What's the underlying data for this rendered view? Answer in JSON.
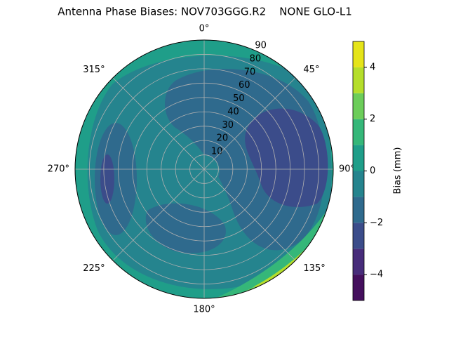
{
  "chart_data": {
    "type": "polar_contour",
    "title": "Antenna Phase Biases: NOV703GGG.R2    NONE GLO-L1",
    "theta_direction": "clockwise",
    "theta_zero": "N",
    "thetaticks": [
      {
        "value": 0,
        "label": "0°"
      },
      {
        "value": 45,
        "label": "45°"
      },
      {
        "value": 90,
        "label": "90°"
      },
      {
        "value": 135,
        "label": "135°"
      },
      {
        "value": 180,
        "label": "180°"
      },
      {
        "value": 225,
        "label": "225°"
      },
      {
        "value": 270,
        "label": "270°"
      },
      {
        "value": 315,
        "label": "315°"
      }
    ],
    "rlim": [
      0,
      90
    ],
    "rticks": [
      10,
      20,
      30,
      40,
      50,
      60,
      70,
      80,
      90
    ],
    "grid": true,
    "colorbar": {
      "label": "Bias (mm)",
      "lim": [
        -5,
        5
      ],
      "ticks": [
        {
          "value": -4,
          "label": "−4"
        },
        {
          "value": -2,
          "label": "−2"
        },
        0,
        2,
        4
      ],
      "levels": [
        -5,
        -4,
        -3,
        -2,
        -1,
        0,
        1,
        2,
        3,
        4,
        5
      ],
      "colors": [
        "#440f5d",
        "#472c7a",
        "#3b4c8a",
        "#2f6a8d",
        "#25848e",
        "#1f9e89",
        "#35b779",
        "#6ccd5a",
        "#b5de2b",
        "#e5e419"
      ]
    }
  }
}
